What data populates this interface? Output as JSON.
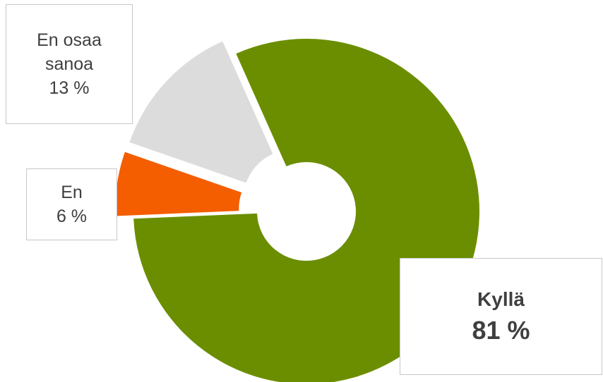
{
  "chart_data": {
    "type": "pie",
    "donut": true,
    "exploded": true,
    "categories": [
      "Kyllä",
      "En",
      "En osaa sanoa"
    ],
    "values": [
      81,
      6,
      13
    ],
    "value_labels": [
      "81 %",
      "6 %",
      "13 %"
    ],
    "colors": [
      "#6b8e00",
      "#f45d00",
      "#dcdcdc"
    ],
    "title": "",
    "legend": "none"
  },
  "labels": {
    "kylla": {
      "name": "Kyllä",
      "value": "81 %"
    },
    "en": {
      "name": "En",
      "value": "6 %"
    },
    "en_osaa": {
      "line1": "En osaa",
      "line2": "sanoa",
      "value": "13 %"
    }
  }
}
